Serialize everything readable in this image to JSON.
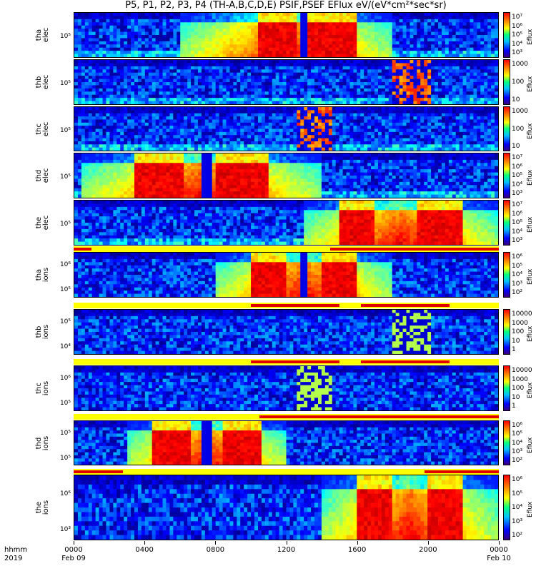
{
  "title": "P5, P1, P2, P3, P4 (TH-A,B,C,D,E) PSIF,PSEF EFlux eV/(eV*cm²*sec*sr)",
  "colorbar_unit": "Eflux",
  "xaxis": {
    "label_top": "hhmm",
    "label_bottom": "2019",
    "ticks": [
      "0000",
      "0400",
      "0800",
      "1200",
      "1600",
      "2000",
      "0000"
    ],
    "dates": [
      "Feb 09",
      "Feb 10"
    ]
  },
  "chart_data": {
    "type": "heatmap",
    "x_range_hours": [
      0,
      24
    ],
    "panels": [
      {
        "label": "tha\nelec",
        "yticks": [
          "10⁵"
        ],
        "cbar_ticks": [
          "10⁷",
          "10⁶",
          "10⁵",
          "10⁴",
          "10³"
        ],
        "activity_hours": [
          [
            6,
            18
          ]
        ],
        "peaks": [
          [
            10.5,
            12.5
          ],
          [
            13,
            16
          ]
        ],
        "spike": 13.0,
        "burst": null
      },
      {
        "label": "thb\nelec",
        "yticks": [
          "10⁵"
        ],
        "cbar_ticks": [
          "1000",
          "100",
          "10"
        ],
        "activity_hours": [],
        "peaks": [],
        "spike": null,
        "burst": [
          18.1,
          20.1
        ]
      },
      {
        "label": "thc\nelec",
        "yticks": [
          "10⁵"
        ],
        "cbar_ticks": [
          "1000",
          "100",
          "10"
        ],
        "activity_hours": [],
        "peaks": [],
        "spike": null,
        "burst": [
          12.7,
          14.7
        ]
      },
      {
        "label": "thd\nelec",
        "yticks": [
          "10⁵"
        ],
        "cbar_ticks": [
          "10⁷",
          "10⁶",
          "10⁵",
          "10⁴",
          "10³"
        ],
        "activity_hours": [
          [
            0.5,
            14
          ]
        ],
        "peaks": [
          [
            3.5,
            6.2
          ],
          [
            8,
            11
          ]
        ],
        "spike": 7.5,
        "burst": null
      },
      {
        "label": "the\nelec",
        "yticks": [
          "10⁵"
        ],
        "cbar_ticks": [
          "10⁷",
          "10⁶",
          "10⁵",
          "10⁴",
          "10³"
        ],
        "activity_hours": [
          [
            13,
            24
          ]
        ],
        "peaks": [
          [
            15,
            17
          ],
          [
            19.5,
            22
          ]
        ],
        "spike": null,
        "burst": null
      },
      {
        "label": "tha\nions",
        "yticks": [
          "10⁶",
          "10⁵"
        ],
        "cbar_ticks": [
          "10⁶",
          "10⁵",
          "10⁴",
          "10³",
          "10²"
        ],
        "activity_hours": [
          [
            8,
            18
          ]
        ],
        "peaks": [
          [
            10,
            12
          ],
          [
            14,
            16
          ]
        ],
        "spike": 13.0,
        "burst": null
      },
      {
        "label": "thb\nions",
        "yticks": [
          "10⁵",
          "10⁴"
        ],
        "cbar_ticks": [
          "10000",
          "1000",
          "100",
          "10",
          "1"
        ],
        "activity_hours": [],
        "peaks": [],
        "spike": null,
        "burst": [
          18.1,
          20.1
        ]
      },
      {
        "label": "thc\nions",
        "yticks": [
          "10⁶",
          "10⁵"
        ],
        "cbar_ticks": [
          "10000",
          "1000",
          "100",
          "10",
          "1"
        ],
        "activity_hours": [],
        "peaks": [],
        "spike": null,
        "burst": [
          12.7,
          14.7
        ]
      },
      {
        "label": "thd\nions",
        "yticks": [
          "10⁵",
          "10⁵"
        ],
        "cbar_ticks": [
          "10⁶",
          "10⁵",
          "10⁴",
          "10³",
          "10²"
        ],
        "activity_hours": [
          [
            3,
            12
          ]
        ],
        "peaks": [
          [
            4.5,
            6.5
          ],
          [
            8.5,
            10.5
          ]
        ],
        "spike": 7.5,
        "burst": null
      },
      {
        "label": "the\nions",
        "yticks": [
          "10⁶",
          "10³"
        ],
        "cbar_ticks": [
          "10⁶",
          "10⁵",
          "10⁴",
          "10³",
          "10²"
        ],
        "activity_hours": [
          [
            14,
            24
          ]
        ],
        "peaks": [
          [
            16,
            18
          ],
          [
            20,
            22
          ]
        ],
        "spike": null,
        "burst": null
      }
    ],
    "flag_bars": [
      {
        "red_hours": [
          [
            0,
            1
          ],
          [
            14.5,
            24
          ]
        ]
      },
      {
        "red_hours": [
          [
            10,
            15
          ],
          [
            16.2,
            21.2
          ]
        ]
      },
      {
        "red_hours": [
          [
            10,
            15
          ],
          [
            16.2,
            21.2
          ]
        ]
      },
      {
        "red_hours": [
          [
            10.5,
            24
          ]
        ]
      },
      {
        "red_hours": [
          [
            0,
            2.8
          ],
          [
            19.8,
            24
          ]
        ]
      }
    ]
  }
}
